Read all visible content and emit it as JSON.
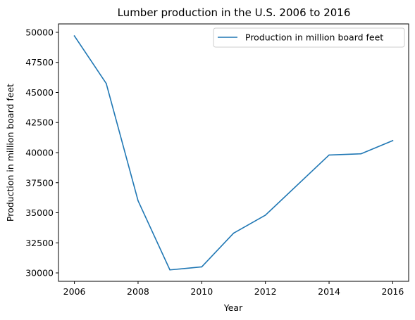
{
  "chart_data": {
    "type": "line",
    "title": "Lumber production in the U.S. 2006 to 2016",
    "xlabel": "Year",
    "ylabel": "Production in million board feet",
    "x": [
      2006,
      2007,
      2008,
      2009,
      2010,
      2011,
      2012,
      2014,
      2015,
      2016
    ],
    "series": [
      {
        "name": "Production in million board feet",
        "color": "#1f77b4",
        "values": [
          49700,
          45750,
          36000,
          30250,
          30500,
          33300,
          34800,
          39800,
          39900,
          41000
        ]
      }
    ],
    "xlim": [
      2005.5,
      2016.5
    ],
    "ylim": [
      29300,
      50700
    ],
    "xticks": [
      2006,
      2008,
      2010,
      2012,
      2014,
      2016
    ],
    "yticks": [
      30000,
      32500,
      35000,
      37500,
      40000,
      42500,
      45000,
      47500,
      50000
    ],
    "xtick_labels": [
      "2006",
      "2008",
      "2010",
      "2012",
      "2014",
      "2016"
    ],
    "ytick_labels": [
      "30000",
      "32500",
      "35000",
      "37500",
      "40000",
      "42500",
      "45000",
      "47500",
      "50000"
    ],
    "grid": false,
    "legend_position": "top-right"
  }
}
